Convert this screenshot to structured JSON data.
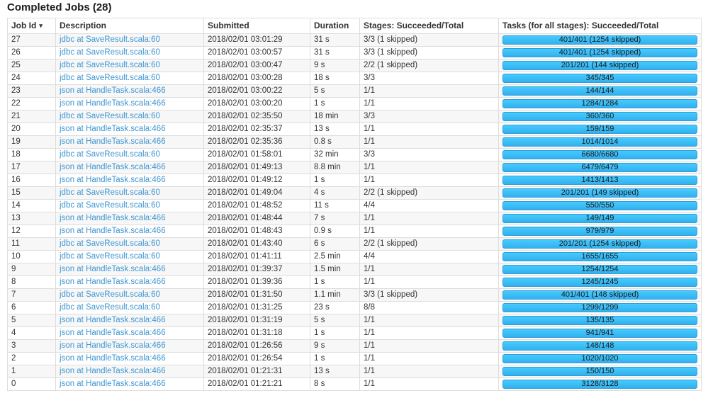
{
  "page": {
    "title": "Completed Jobs (28)"
  },
  "colors": {
    "link": "#3e96d2",
    "bar_top": "#44cbff",
    "bar_bottom": "#34b0ee",
    "bar_border": "#2f9ed8",
    "row_stripe": "#f7f7f7",
    "table_border": "#dddddd"
  },
  "table": {
    "columns": [
      "Job Id",
      "Description",
      "Submitted",
      "Duration",
      "Stages: Succeeded/Total",
      "Tasks (for all stages): Succeeded/Total"
    ],
    "sort_column": "Job Id",
    "sort_indicator": "▾",
    "rows": [
      {
        "job_id": "27",
        "description": "jdbc at SaveResult.scala:60",
        "submitted": "2018/02/01 03:01:29",
        "duration": "31 s",
        "stages": "3/3 (1 skipped)",
        "tasks": "401/401 (1254 skipped)",
        "progress_percent": 100
      },
      {
        "job_id": "26",
        "description": "jdbc at SaveResult.scala:60",
        "submitted": "2018/02/01 03:00:57",
        "duration": "31 s",
        "stages": "3/3 (1 skipped)",
        "tasks": "401/401 (1254 skipped)",
        "progress_percent": 100
      },
      {
        "job_id": "25",
        "description": "jdbc at SaveResult.scala:60",
        "submitted": "2018/02/01 03:00:47",
        "duration": "9 s",
        "stages": "2/2 (1 skipped)",
        "tasks": "201/201 (144 skipped)",
        "progress_percent": 100
      },
      {
        "job_id": "24",
        "description": "jdbc at SaveResult.scala:60",
        "submitted": "2018/02/01 03:00:28",
        "duration": "18 s",
        "stages": "3/3",
        "tasks": "345/345",
        "progress_percent": 100
      },
      {
        "job_id": "23",
        "description": "json at HandleTask.scala:466",
        "submitted": "2018/02/01 03:00:22",
        "duration": "5 s",
        "stages": "1/1",
        "tasks": "144/144",
        "progress_percent": 100
      },
      {
        "job_id": "22",
        "description": "json at HandleTask.scala:466",
        "submitted": "2018/02/01 03:00:20",
        "duration": "1 s",
        "stages": "1/1",
        "tasks": "1284/1284",
        "progress_percent": 100
      },
      {
        "job_id": "21",
        "description": "jdbc at SaveResult.scala:60",
        "submitted": "2018/02/01 02:35:50",
        "duration": "18 min",
        "stages": "3/3",
        "tasks": "360/360",
        "progress_percent": 100
      },
      {
        "job_id": "20",
        "description": "json at HandleTask.scala:466",
        "submitted": "2018/02/01 02:35:37",
        "duration": "13 s",
        "stages": "1/1",
        "tasks": "159/159",
        "progress_percent": 100
      },
      {
        "job_id": "19",
        "description": "json at HandleTask.scala:466",
        "submitted": "2018/02/01 02:35:36",
        "duration": "0.8 s",
        "stages": "1/1",
        "tasks": "1014/1014",
        "progress_percent": 100
      },
      {
        "job_id": "18",
        "description": "jdbc at SaveResult.scala:60",
        "submitted": "2018/02/01 01:58:01",
        "duration": "32 min",
        "stages": "3/3",
        "tasks": "6680/6680",
        "progress_percent": 100
      },
      {
        "job_id": "17",
        "description": "json at HandleTask.scala:466",
        "submitted": "2018/02/01 01:49:13",
        "duration": "8.8 min",
        "stages": "1/1",
        "tasks": "6479/6479",
        "progress_percent": 100
      },
      {
        "job_id": "16",
        "description": "json at HandleTask.scala:466",
        "submitted": "2018/02/01 01:49:12",
        "duration": "1 s",
        "stages": "1/1",
        "tasks": "1413/1413",
        "progress_percent": 100
      },
      {
        "job_id": "15",
        "description": "jdbc at SaveResult.scala:60",
        "submitted": "2018/02/01 01:49:04",
        "duration": "4 s",
        "stages": "2/2 (1 skipped)",
        "tasks": "201/201 (149 skipped)",
        "progress_percent": 100
      },
      {
        "job_id": "14",
        "description": "jdbc at SaveResult.scala:60",
        "submitted": "2018/02/01 01:48:52",
        "duration": "11 s",
        "stages": "4/4",
        "tasks": "550/550",
        "progress_percent": 100
      },
      {
        "job_id": "13",
        "description": "json at HandleTask.scala:466",
        "submitted": "2018/02/01 01:48:44",
        "duration": "7 s",
        "stages": "1/1",
        "tasks": "149/149",
        "progress_percent": 100
      },
      {
        "job_id": "12",
        "description": "json at HandleTask.scala:466",
        "submitted": "2018/02/01 01:48:43",
        "duration": "0.9 s",
        "stages": "1/1",
        "tasks": "979/979",
        "progress_percent": 100
      },
      {
        "job_id": "11",
        "description": "jdbc at SaveResult.scala:60",
        "submitted": "2018/02/01 01:43:40",
        "duration": "6 s",
        "stages": "2/2 (1 skipped)",
        "tasks": "201/201 (1254 skipped)",
        "progress_percent": 100
      },
      {
        "job_id": "10",
        "description": "jdbc at SaveResult.scala:60",
        "submitted": "2018/02/01 01:41:11",
        "duration": "2.5 min",
        "stages": "4/4",
        "tasks": "1655/1655",
        "progress_percent": 100
      },
      {
        "job_id": "9",
        "description": "json at HandleTask.scala:466",
        "submitted": "2018/02/01 01:39:37",
        "duration": "1.5 min",
        "stages": "1/1",
        "tasks": "1254/1254",
        "progress_percent": 100
      },
      {
        "job_id": "8",
        "description": "json at HandleTask.scala:466",
        "submitted": "2018/02/01 01:39:36",
        "duration": "1 s",
        "stages": "1/1",
        "tasks": "1245/1245",
        "progress_percent": 100
      },
      {
        "job_id": "7",
        "description": "jdbc at SaveResult.scala:60",
        "submitted": "2018/02/01 01:31:50",
        "duration": "1.1 min",
        "stages": "3/3 (1 skipped)",
        "tasks": "401/401 (148 skipped)",
        "progress_percent": 100
      },
      {
        "job_id": "6",
        "description": "jdbc at SaveResult.scala:60",
        "submitted": "2018/02/01 01:31:25",
        "duration": "23 s",
        "stages": "8/8",
        "tasks": "1299/1299",
        "progress_percent": 100
      },
      {
        "job_id": "5",
        "description": "json at HandleTask.scala:466",
        "submitted": "2018/02/01 01:31:19",
        "duration": "5 s",
        "stages": "1/1",
        "tasks": "135/135",
        "progress_percent": 100
      },
      {
        "job_id": "4",
        "description": "json at HandleTask.scala:466",
        "submitted": "2018/02/01 01:31:18",
        "duration": "1 s",
        "stages": "1/1",
        "tasks": "941/941",
        "progress_percent": 100
      },
      {
        "job_id": "3",
        "description": "json at HandleTask.scala:466",
        "submitted": "2018/02/01 01:26:56",
        "duration": "9 s",
        "stages": "1/1",
        "tasks": "148/148",
        "progress_percent": 100
      },
      {
        "job_id": "2",
        "description": "json at HandleTask.scala:466",
        "submitted": "2018/02/01 01:26:54",
        "duration": "1 s",
        "stages": "1/1",
        "tasks": "1020/1020",
        "progress_percent": 100
      },
      {
        "job_id": "1",
        "description": "json at HandleTask.scala:466",
        "submitted": "2018/02/01 01:21:31",
        "duration": "13 s",
        "stages": "1/1",
        "tasks": "150/150",
        "progress_percent": 100
      },
      {
        "job_id": "0",
        "description": "json at HandleTask.scala:466",
        "submitted": "2018/02/01 01:21:21",
        "duration": "8 s",
        "stages": "1/1",
        "tasks": "3128/3128",
        "progress_percent": 100
      }
    ]
  }
}
